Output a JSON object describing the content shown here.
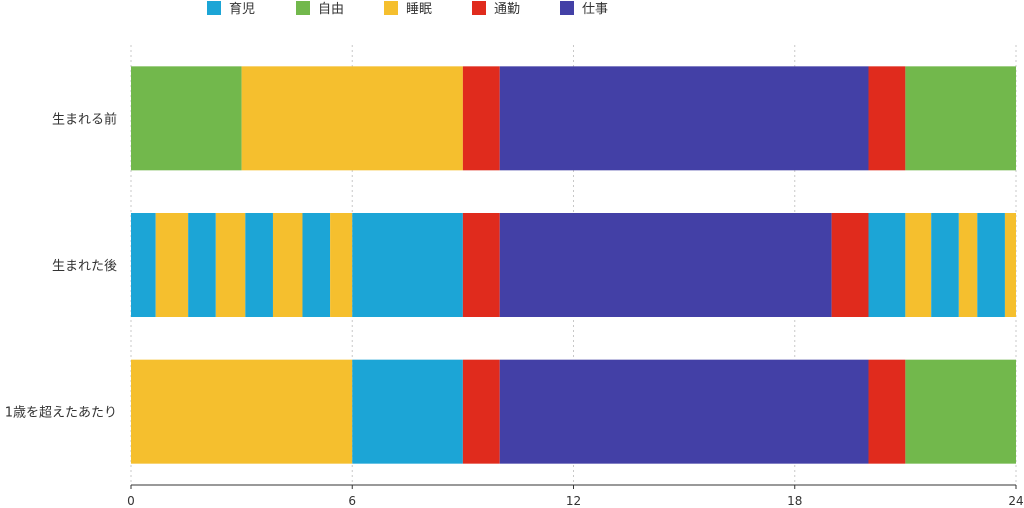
{
  "chart_data": {
    "type": "bar",
    "orientation": "horizontal",
    "stacked": true,
    "title": "",
    "xlabel": "",
    "ylabel": "",
    "xlim": [
      0,
      24
    ],
    "xticks": [
      0,
      6,
      12,
      18,
      24
    ],
    "grid": "vertical dotted",
    "legend_position": "top",
    "legend": [
      {
        "name": "育児",
        "color": "#1ca5d6"
      },
      {
        "name": "自由",
        "color": "#72b84c"
      },
      {
        "name": "睡眠",
        "color": "#f5bf2e"
      },
      {
        "name": "通勤",
        "color": "#e02b1d"
      },
      {
        "name": "仕事",
        "color": "#4340a6"
      }
    ],
    "categories": [
      "生まれる前",
      "生まれた後",
      "1歳を超えたあたり"
    ],
    "rows": [
      {
        "label": "生まれる前",
        "segments": [
          {
            "series": "自由",
            "start": 0,
            "end": 3
          },
          {
            "series": "睡眠",
            "start": 3,
            "end": 9
          },
          {
            "series": "通勤",
            "start": 9,
            "end": 10
          },
          {
            "series": "仕事",
            "start": 10,
            "end": 20
          },
          {
            "series": "通勤",
            "start": 20,
            "end": 21
          },
          {
            "series": "自由",
            "start": 21,
            "end": 24
          }
        ]
      },
      {
        "label": "生まれた後",
        "segments": [
          {
            "series": "育児",
            "start": 0,
            "end": 0.67
          },
          {
            "series": "睡眠",
            "start": 0.67,
            "end": 1.55
          },
          {
            "series": "育児",
            "start": 1.55,
            "end": 2.3
          },
          {
            "series": "睡眠",
            "start": 2.3,
            "end": 3.1
          },
          {
            "series": "育児",
            "start": 3.1,
            "end": 3.85
          },
          {
            "series": "睡眠",
            "start": 3.85,
            "end": 4.65
          },
          {
            "series": "育児",
            "start": 4.65,
            "end": 5.4
          },
          {
            "series": "睡眠",
            "start": 5.4,
            "end": 6
          },
          {
            "series": "育児",
            "start": 6,
            "end": 9
          },
          {
            "series": "通勤",
            "start": 9,
            "end": 10
          },
          {
            "series": "仕事",
            "start": 10,
            "end": 19
          },
          {
            "series": "通勤",
            "start": 19,
            "end": 20
          },
          {
            "series": "育児",
            "start": 20,
            "end": 21
          },
          {
            "series": "睡眠",
            "start": 21,
            "end": 21.7
          },
          {
            "series": "育児",
            "start": 21.7,
            "end": 22.45
          },
          {
            "series": "睡眠",
            "start": 22.45,
            "end": 22.95
          },
          {
            "series": "育児",
            "start": 22.95,
            "end": 23.7
          },
          {
            "series": "睡眠",
            "start": 23.7,
            "end": 24
          }
        ]
      },
      {
        "label": "1歳を超えたあたり",
        "segments": [
          {
            "series": "睡眠",
            "start": 0,
            "end": 6
          },
          {
            "series": "育児",
            "start": 6,
            "end": 9
          },
          {
            "series": "通勤",
            "start": 9,
            "end": 10
          },
          {
            "series": "仕事",
            "start": 10,
            "end": 20
          },
          {
            "series": "通勤",
            "start": 20,
            "end": 21
          },
          {
            "series": "自由",
            "start": 21,
            "end": 24
          }
        ]
      }
    ]
  }
}
